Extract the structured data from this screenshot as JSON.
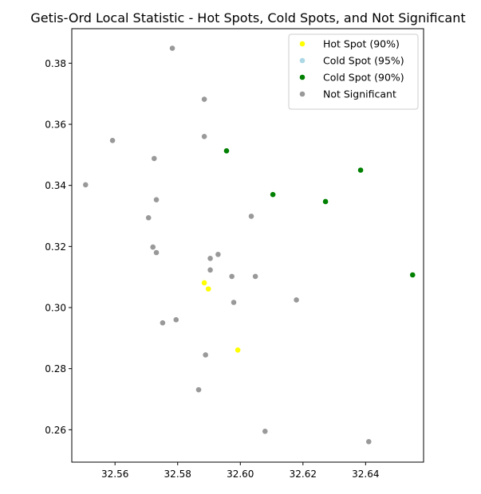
{
  "chart_data": {
    "type": "scatter",
    "title": "Getis-Ord Local Statistic - Hot Spots, Cold Spots, and Not Significant",
    "xlabel": "",
    "ylabel": "",
    "xlim": [
      32.5462,
      32.6585
    ],
    "ylim": [
      0.2494,
      0.3913
    ],
    "x_ticks": [
      32.56,
      32.58,
      32.6,
      32.62,
      32.64
    ],
    "x_tick_labels": [
      "32.56",
      "32.58",
      "32.60",
      "32.62",
      "32.64"
    ],
    "y_ticks": [
      0.26,
      0.28,
      0.3,
      0.32,
      0.34,
      0.36,
      0.38
    ],
    "y_tick_labels": [
      "0.26",
      "0.28",
      "0.30",
      "0.32",
      "0.34",
      "0.36",
      "0.38"
    ],
    "grid": false,
    "legend_position": "top-right",
    "series": [
      {
        "name": "Hot Spot (90%)",
        "color": "#ffff00",
        "points": [
          {
            "x": 32.5885,
            "y": 0.3081
          },
          {
            "x": 32.5898,
            "y": 0.3061
          },
          {
            "x": 32.5992,
            "y": 0.2861
          }
        ]
      },
      {
        "name": "Cold Spot (95%)",
        "color": "#add8e6",
        "points": []
      },
      {
        "name": "Cold Spot (90%)",
        "color": "#008000",
        "points": [
          {
            "x": 32.5956,
            "y": 0.3513
          },
          {
            "x": 32.6104,
            "y": 0.337
          },
          {
            "x": 32.6272,
            "y": 0.3347
          },
          {
            "x": 32.6384,
            "y": 0.345
          },
          {
            "x": 32.655,
            "y": 0.3107
          }
        ]
      },
      {
        "name": "Not Significant",
        "color": "#999999",
        "points": [
          {
            "x": 32.5783,
            "y": 0.3849
          },
          {
            "x": 32.5885,
            "y": 0.3682
          },
          {
            "x": 32.5885,
            "y": 0.356
          },
          {
            "x": 32.5592,
            "y": 0.3547
          },
          {
            "x": 32.5725,
            "y": 0.3488
          },
          {
            "x": 32.5506,
            "y": 0.3402
          },
          {
            "x": 32.5732,
            "y": 0.3353
          },
          {
            "x": 32.5707,
            "y": 0.3294
          },
          {
            "x": 32.6035,
            "y": 0.3299
          },
          {
            "x": 32.5721,
            "y": 0.3198
          },
          {
            "x": 32.5732,
            "y": 0.318
          },
          {
            "x": 32.5929,
            "y": 0.3174
          },
          {
            "x": 32.5904,
            "y": 0.3161
          },
          {
            "x": 32.5904,
            "y": 0.3123
          },
          {
            "x": 32.5973,
            "y": 0.3102
          },
          {
            "x": 32.6048,
            "y": 0.3102
          },
          {
            "x": 32.5979,
            "y": 0.3017
          },
          {
            "x": 32.6179,
            "y": 0.3025
          },
          {
            "x": 32.5795,
            "y": 0.296
          },
          {
            "x": 32.5752,
            "y": 0.295
          },
          {
            "x": 32.5889,
            "y": 0.2845
          },
          {
            "x": 32.5867,
            "y": 0.2731
          },
          {
            "x": 32.6079,
            "y": 0.2595
          },
          {
            "x": 32.641,
            "y": 0.2561
          }
        ]
      }
    ]
  }
}
